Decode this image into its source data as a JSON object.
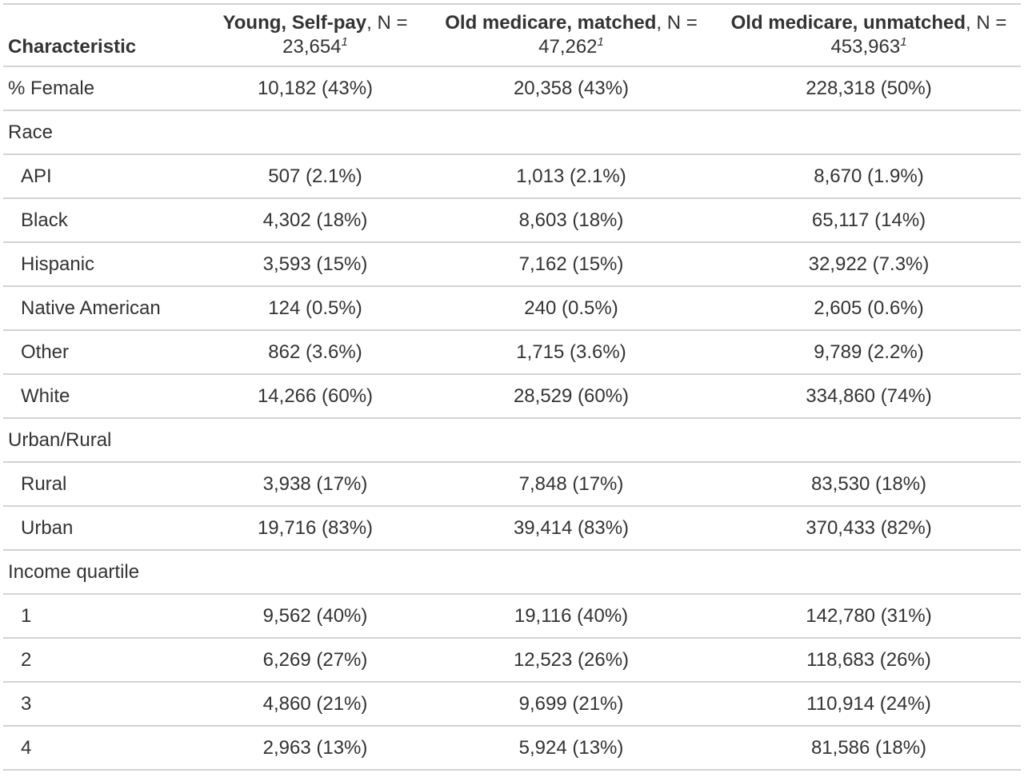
{
  "table": {
    "header": {
      "characteristic": "Characteristic",
      "columns": [
        {
          "title": "Young, Self-pay",
          "suffix": ", N = 23,654",
          "footnote": "1"
        },
        {
          "title": "Old medicare, matched",
          "suffix": ", N = 47,262",
          "footnote": "1"
        },
        {
          "title": "Old medicare, unmatched",
          "suffix": ", N = 453,963",
          "footnote": "1"
        }
      ]
    },
    "rows": [
      {
        "label": "% Female",
        "values": [
          "10,182 (43%)",
          "20,358 (43%)",
          "228,318 (50%)"
        ]
      },
      {
        "label": "Race",
        "values": [
          "",
          "",
          ""
        ]
      },
      {
        "label": "API",
        "values": [
          "507 (2.1%)",
          "1,013 (2.1%)",
          "8,670 (1.9%)"
        ]
      },
      {
        "label": "Black",
        "values": [
          "4,302 (18%)",
          "8,603 (18%)",
          "65,117 (14%)"
        ]
      },
      {
        "label": "Hispanic",
        "values": [
          "3,593 (15%)",
          "7,162 (15%)",
          "32,922 (7.3%)"
        ]
      },
      {
        "label": "Native American",
        "values": [
          "124 (0.5%)",
          "240 (0.5%)",
          "2,605 (0.6%)"
        ]
      },
      {
        "label": "Other",
        "values": [
          "862 (3.6%)",
          "1,715 (3.6%)",
          "9,789 (2.2%)"
        ]
      },
      {
        "label": "White",
        "values": [
          "14,266 (60%)",
          "28,529 (60%)",
          "334,860 (74%)"
        ]
      },
      {
        "label": "Urban/Rural",
        "values": [
          "",
          "",
          ""
        ]
      },
      {
        "label": "Rural",
        "values": [
          "3,938 (17%)",
          "7,848 (17%)",
          "83,530 (18%)"
        ]
      },
      {
        "label": "Urban",
        "values": [
          "19,716 (83%)",
          "39,414 (83%)",
          "370,433 (82%)"
        ]
      },
      {
        "label": "Income quartile",
        "values": [
          "",
          "",
          ""
        ]
      },
      {
        "label": "1",
        "values": [
          "9,562 (40%)",
          "19,116 (40%)",
          "142,780 (31%)"
        ]
      },
      {
        "label": "2",
        "values": [
          "6,269 (27%)",
          "12,523 (26%)",
          "118,683 (26%)"
        ]
      },
      {
        "label": "3",
        "values": [
          "4,860 (21%)",
          "9,699 (21%)",
          "110,914 (24%)"
        ]
      },
      {
        "label": "4",
        "values": [
          "2,963 (13%)",
          "5,924 (13%)",
          "81,586 (18%)"
        ]
      }
    ]
  }
}
